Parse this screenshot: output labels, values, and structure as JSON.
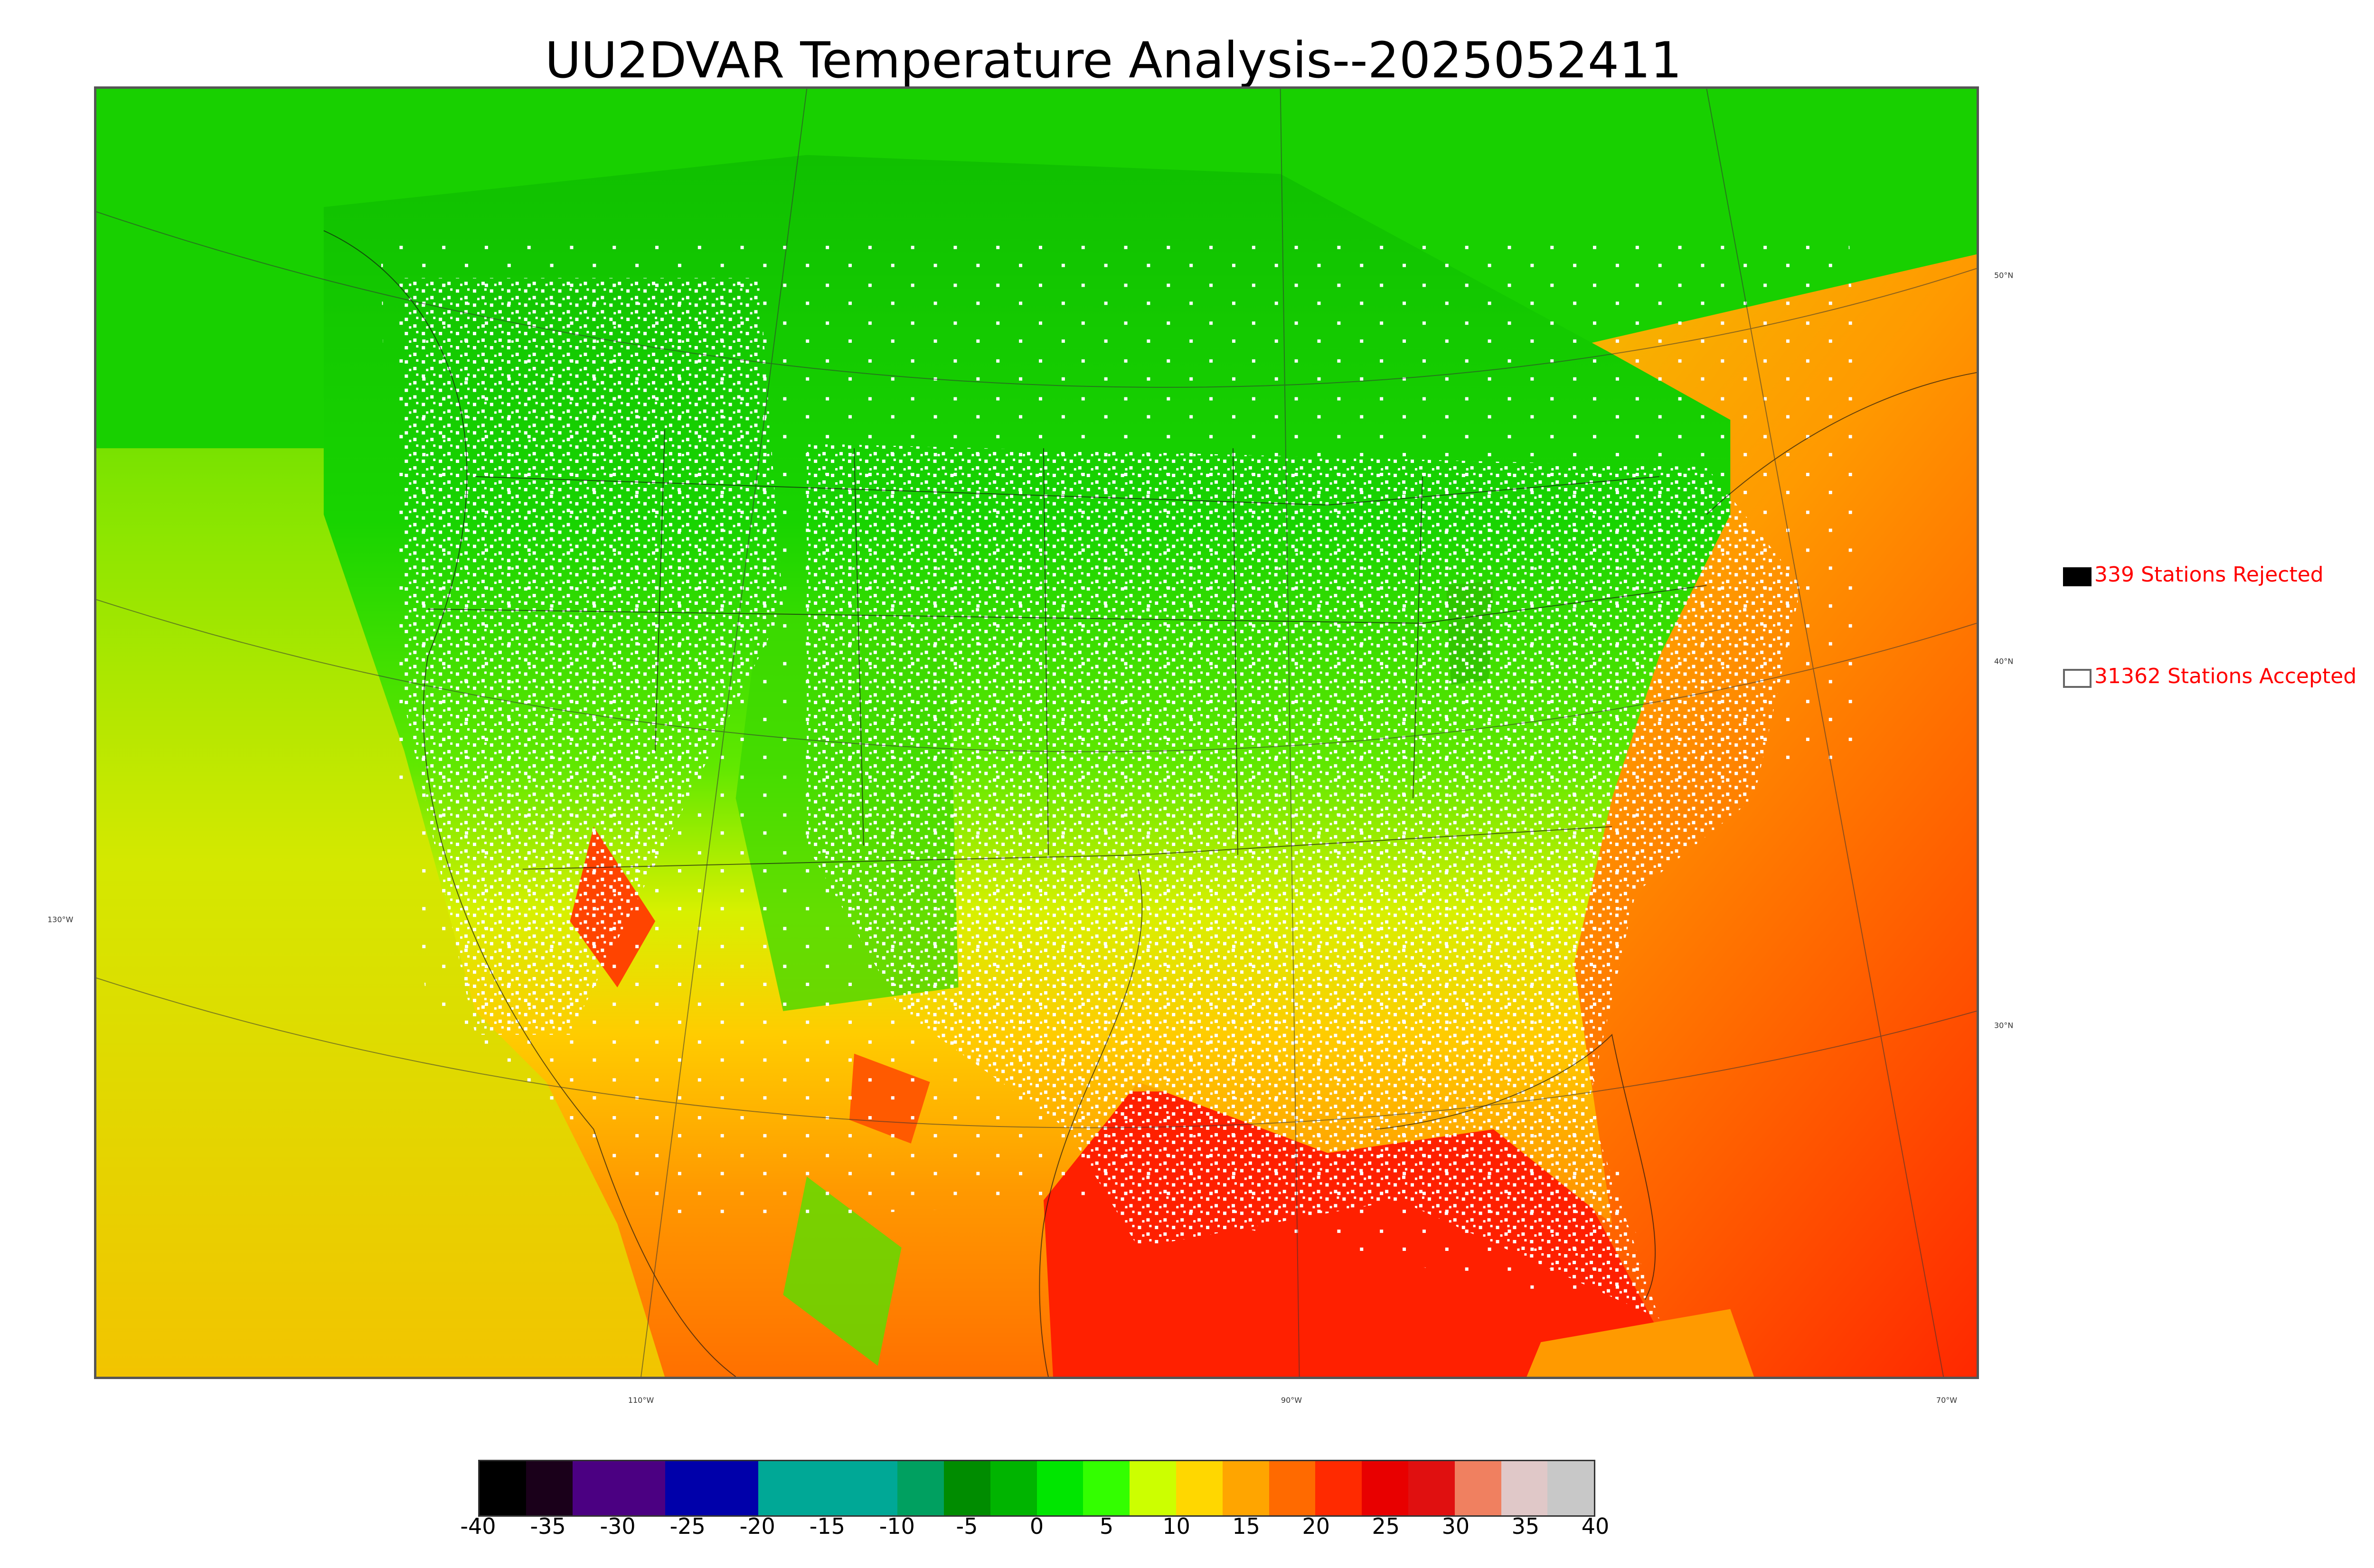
{
  "title": "UU2DVAR Temperature Analysis--2025052411",
  "map": {
    "lon_labels": [
      "110°W",
      "90°W",
      "70°W"
    ],
    "lat_labels_right": [
      "50°N",
      "40°N",
      "30°N"
    ],
    "lat_label_left": "130°W"
  },
  "legend": {
    "rejected_label": "339 Stations Rejected",
    "accepted_label": "31362 Stations Accepted",
    "rejected_color": "#000000",
    "accepted_color": "#ffffff",
    "text_color": "#ff0000"
  },
  "colorbar": {
    "ticks": [
      "-40",
      "-35",
      "-30",
      "-25",
      "-20",
      "-15",
      "-10",
      "-5",
      "0",
      "5",
      "10",
      "15",
      "20",
      "25",
      "30",
      "35",
      "40"
    ],
    "colors": [
      "#000000",
      "#1a001a",
      "#4b0082",
      "#4b0082",
      "#0000aa",
      "#0000aa",
      "#00a896",
      "#00a896",
      "#00a896",
      "#00a060",
      "#008c00",
      "#00b400",
      "#00e600",
      "#33ff00",
      "#ccff00",
      "#ffd700",
      "#ffa500",
      "#ff6a00",
      "#ff2a00",
      "#e80000",
      "#e01010",
      "#f08060",
      "#e0c8c8",
      "#c8c8c8"
    ]
  }
}
